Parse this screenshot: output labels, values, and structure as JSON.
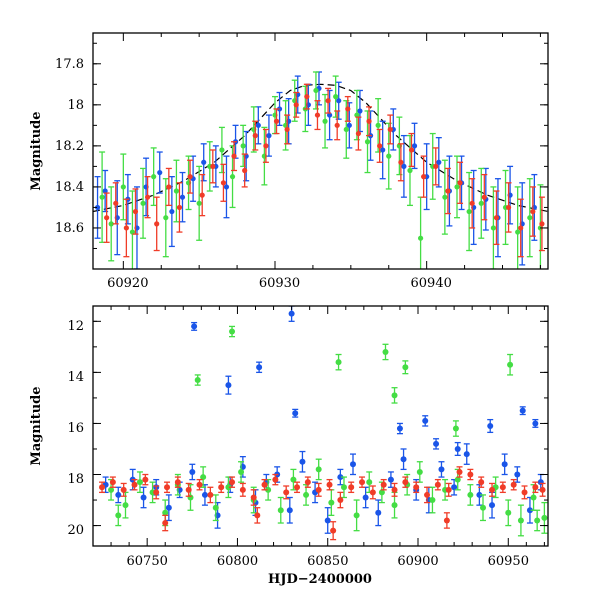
{
  "chart_data": [
    {
      "type": "scatter",
      "title": "",
      "xlabel": "",
      "ylabel": "Magnitude",
      "xlim": [
        60918,
        60948
      ],
      "ylim": [
        18.8,
        17.65
      ],
      "y_inverted": true,
      "xticks": [
        60920,
        60930,
        60940
      ],
      "xtick_labels": [
        "60920",
        "60930",
        "60940"
      ],
      "yticks": [
        17.8,
        18.0,
        18.2,
        18.4,
        18.6
      ],
      "ytick_labels": [
        "17.8",
        "18",
        "18.2",
        "18.4",
        "18.6"
      ],
      "colors": {
        "blue": "#1a55e8",
        "green": "#44dd44",
        "red": "#f03c28",
        "fit": "#000000"
      },
      "series": [
        {
          "name": "blue",
          "x": [
            60918.3,
            60918.8,
            60919.6,
            60920.3,
            60920.9,
            60921.5,
            60922.4,
            60923.2,
            60923.9,
            60924.6,
            60925.3,
            60926.1,
            60926.8,
            60927.4,
            60928.1,
            60928.9,
            60929.6,
            60930.3,
            60930.9,
            60931.5,
            60932.2,
            60932.9,
            60933.6,
            60934.2,
            60934.9,
            60935.6,
            60936.3,
            60937.1,
            60937.8,
            60938.5,
            60939.2,
            60940.0,
            60940.8,
            60941.5,
            60942.3,
            60943.1,
            60943.9,
            60944.7,
            60945.5,
            60946.3,
            60947.1
          ],
          "y": [
            18.5,
            18.42,
            18.55,
            18.46,
            18.6,
            18.4,
            18.33,
            18.52,
            18.45,
            18.36,
            18.28,
            18.3,
            18.4,
            18.18,
            18.25,
            18.1,
            18.15,
            18.02,
            18.08,
            17.95,
            18.0,
            17.92,
            18.05,
            17.98,
            18.1,
            18.03,
            18.15,
            18.22,
            18.12,
            18.3,
            18.2,
            18.35,
            18.28,
            18.42,
            18.38,
            18.5,
            18.46,
            18.55,
            18.44,
            18.58,
            18.5
          ],
          "err": [
            0.15,
            0.1,
            0.18,
            0.12,
            0.2,
            0.14,
            0.1,
            0.17,
            0.12,
            0.11,
            0.09,
            0.1,
            0.15,
            0.08,
            0.12,
            0.09,
            0.1,
            0.08,
            0.11,
            0.09,
            0.1,
            0.08,
            0.12,
            0.09,
            0.11,
            0.1,
            0.12,
            0.14,
            0.1,
            0.15,
            0.11,
            0.16,
            0.12,
            0.17,
            0.13,
            0.18,
            0.15,
            0.19,
            0.14,
            0.2,
            0.16
          ]
        },
        {
          "name": "green",
          "x": [
            60918.6,
            60919.2,
            60920.0,
            60920.6,
            60921.3,
            60922.0,
            60922.8,
            60923.5,
            60924.3,
            60925.0,
            60925.7,
            60926.5,
            60927.2,
            60927.9,
            60928.6,
            60929.3,
            60930.0,
            60930.7,
            60931.3,
            60932.0,
            60932.7,
            60933.3,
            60934.0,
            60934.7,
            60935.4,
            60936.1,
            60936.8,
            60937.5,
            60938.2,
            60938.9,
            60939.6,
            60940.4,
            60941.2,
            60942.0,
            60942.8,
            60943.6,
            60944.4,
            60945.2,
            60946.0,
            60946.8,
            60947.5
          ],
          "y": [
            18.45,
            18.58,
            18.4,
            18.62,
            18.48,
            18.35,
            18.55,
            18.42,
            18.38,
            18.48,
            18.3,
            18.22,
            18.35,
            18.2,
            18.12,
            18.25,
            18.05,
            18.1,
            17.98,
            18.02,
            17.93,
            18.08,
            17.96,
            18.12,
            18.05,
            18.18,
            18.1,
            18.25,
            18.2,
            18.32,
            18.65,
            18.3,
            18.45,
            18.4,
            18.52,
            18.48,
            18.6,
            18.5,
            18.62,
            18.55,
            18.6
          ],
          "err": [
            0.22,
            0.18,
            0.16,
            0.2,
            0.17,
            0.14,
            0.19,
            0.15,
            0.13,
            0.18,
            0.12,
            0.11,
            0.15,
            0.1,
            0.11,
            0.14,
            0.09,
            0.12,
            0.1,
            0.11,
            0.09,
            0.13,
            0.1,
            0.14,
            0.12,
            0.15,
            0.13,
            0.16,
            0.14,
            0.17,
            0.2,
            0.16,
            0.18,
            0.15,
            0.19,
            0.17,
            0.2,
            0.18,
            0.22,
            0.19,
            0.21
          ]
        },
        {
          "name": "red",
          "x": [
            60918.9,
            60919.5,
            60920.2,
            60920.8,
            60921.6,
            60922.2,
            60923.0,
            60923.7,
            60924.4,
            60925.2,
            60925.9,
            60926.6,
            60927.3,
            60928.0,
            60928.7,
            60929.4,
            60930.1,
            60930.8,
            60931.4,
            60932.1,
            60932.8,
            60933.5,
            60934.1,
            60934.8,
            60935.5,
            60936.2,
            60936.9,
            60937.6,
            60938.3,
            60939.0,
            60939.8,
            60940.6,
            60941.4,
            60942.2,
            60943.0,
            60943.8,
            60944.6,
            60945.4,
            60946.2,
            60947.0,
            60947.6
          ],
          "y": [
            18.55,
            18.48,
            18.6,
            18.52,
            18.45,
            18.58,
            18.4,
            18.5,
            18.35,
            18.44,
            18.3,
            18.38,
            18.25,
            18.32,
            18.15,
            18.2,
            18.08,
            18.12,
            18.0,
            17.96,
            18.05,
            17.98,
            18.1,
            18.02,
            18.14,
            18.08,
            18.2,
            18.12,
            18.28,
            18.22,
            18.35,
            18.3,
            18.42,
            18.38,
            18.48,
            18.45,
            18.55,
            18.5,
            18.6,
            18.52,
            18.58
          ],
          "err": [
            0.12,
            0.1,
            0.14,
            0.11,
            0.1,
            0.13,
            0.09,
            0.12,
            0.08,
            0.1,
            0.08,
            0.09,
            0.07,
            0.08,
            0.07,
            0.08,
            0.06,
            0.07,
            0.06,
            0.06,
            0.07,
            0.06,
            0.07,
            0.06,
            0.08,
            0.07,
            0.08,
            0.07,
            0.09,
            0.08,
            0.1,
            0.09,
            0.11,
            0.1,
            0.12,
            0.11,
            0.13,
            0.12,
            0.14,
            0.12,
            0.13
          ]
        },
        {
          "name": "fit",
          "type": "line",
          "dashed": true,
          "x": [
            60918,
            60920,
            60922,
            60924,
            60926,
            60928,
            60929,
            60930,
            60931,
            60932,
            60933,
            60934,
            60935,
            60936,
            60937,
            60938,
            60940,
            60942,
            60944,
            60946,
            60948
          ],
          "y": [
            18.52,
            18.49,
            18.44,
            18.37,
            18.28,
            18.15,
            18.07,
            17.99,
            17.93,
            17.905,
            17.9,
            17.905,
            17.93,
            17.99,
            18.07,
            18.15,
            18.28,
            18.37,
            18.44,
            18.49,
            18.52
          ]
        }
      ]
    },
    {
      "type": "scatter",
      "title": "",
      "xlabel": "HJD−2400000",
      "ylabel": "Magnitude",
      "xlim": [
        60720,
        60972
      ],
      "ylim": [
        20.8,
        11.4
      ],
      "y_inverted": true,
      "xticks": [
        60750,
        60800,
        60850,
        60900,
        60950
      ],
      "xtick_labels": [
        "60750",
        "60800",
        "60850",
        "60900",
        "60950"
      ],
      "yticks": [
        12,
        14,
        16,
        18,
        20
      ],
      "ytick_labels": [
        "12",
        "14",
        "16",
        "18",
        "20"
      ],
      "colors": {
        "blue": "#1a55e8",
        "green": "#44dd44",
        "red": "#f03c28"
      },
      "series": [
        {
          "name": "blue",
          "x": [
            60727,
            60734,
            60742,
            60748,
            60755,
            60762,
            60768,
            60775,
            60782,
            60789,
            60796,
            60803,
            60810,
            60816,
            60822,
            60829,
            60836,
            60843,
            60850,
            60857,
            60864,
            60871,
            60878,
            60885,
            60892,
            60899,
            60906,
            60913,
            60920,
            60927,
            60934,
            60941,
            60948,
            60955,
            60962,
            60968,
            60776,
            60795,
            60812,
            60830,
            60832,
            60904,
            60940,
            60958,
            60965,
            60910,
            60922,
            60890
          ],
          "y": [
            18.4,
            18.8,
            18.2,
            18.9,
            18.5,
            19.3,
            18.6,
            17.9,
            18.8,
            19.6,
            18.4,
            17.7,
            19.1,
            18.3,
            18.0,
            19.4,
            17.5,
            18.7,
            19.8,
            18.1,
            17.6,
            18.9,
            19.5,
            18.2,
            17.4,
            18.6,
            19.0,
            17.8,
            18.5,
            17.2,
            18.8,
            19.2,
            17.6,
            18.0,
            19.4,
            18.3,
            12.2,
            14.5,
            13.8,
            11.7,
            15.6,
            15.9,
            16.1,
            15.5,
            16.0,
            16.8,
            17.0,
            16.2
          ],
          "err": [
            0.3,
            0.3,
            0.4,
            0.4,
            0.3,
            0.5,
            0.3,
            0.3,
            0.4,
            0.5,
            0.3,
            0.4,
            0.5,
            0.3,
            0.3,
            0.5,
            0.4,
            0.4,
            0.5,
            0.3,
            0.4,
            0.4,
            0.5,
            0.3,
            0.4,
            0.4,
            0.5,
            0.3,
            0.3,
            0.4,
            0.4,
            0.5,
            0.4,
            0.3,
            0.5,
            0.3,
            0.15,
            0.35,
            0.2,
            0.3,
            0.15,
            0.2,
            0.25,
            0.15,
            0.15,
            0.2,
            0.25,
            0.2
          ]
        },
        {
          "name": "green",
          "x": [
            60730,
            60738,
            60746,
            60753,
            60760,
            60767,
            60774,
            60781,
            60788,
            60795,
            60802,
            60809,
            60817,
            60824,
            60831,
            60838,
            60845,
            60852,
            60859,
            60866,
            60873,
            60880,
            60887,
            60894,
            60901,
            60908,
            60915,
            60922,
            60929,
            60936,
            60943,
            60950,
            60957,
            60964,
            60970,
            60778,
            60797,
            60856,
            60882,
            60887,
            60893,
            60921,
            60951,
            60734,
            60966
          ],
          "y": [
            18.6,
            19.2,
            18.3,
            18.7,
            19.5,
            18.4,
            18.9,
            18.1,
            19.3,
            18.5,
            17.9,
            19.0,
            18.6,
            19.4,
            18.2,
            18.8,
            17.8,
            19.1,
            18.5,
            19.6,
            18.3,
            18.7,
            19.2,
            18.4,
            17.9,
            19.0,
            18.6,
            18.2,
            18.8,
            19.3,
            18.5,
            19.5,
            19.8,
            18.9,
            19.7,
            14.3,
            12.4,
            13.6,
            13.2,
            14.9,
            13.8,
            16.2,
            13.7,
            19.6,
            19.8
          ],
          "err": [
            0.4,
            0.5,
            0.4,
            0.4,
            0.5,
            0.4,
            0.5,
            0.4,
            0.5,
            0.4,
            0.4,
            0.5,
            0.4,
            0.5,
            0.4,
            0.4,
            0.4,
            0.5,
            0.4,
            0.6,
            0.4,
            0.4,
            0.5,
            0.4,
            0.4,
            0.5,
            0.4,
            0.4,
            0.4,
            0.5,
            0.4,
            0.5,
            0.6,
            0.5,
            0.6,
            0.2,
            0.2,
            0.3,
            0.3,
            0.3,
            0.25,
            0.3,
            0.4,
            0.4,
            0.4
          ]
        },
        {
          "name": "red",
          "x": [
            60725,
            60731,
            60737,
            60743,
            60749,
            60755,
            60761,
            60767,
            60773,
            60779,
            60785,
            60791,
            60797,
            60803,
            60809,
            60815,
            60821,
            60827,
            60833,
            60839,
            60845,
            60851,
            60857,
            60863,
            60869,
            60875,
            60881,
            60887,
            60893,
            60899,
            60905,
            60911,
            60917,
            60923,
            60929,
            60935,
            60941,
            60947,
            60953,
            60959,
            60965,
            60969,
            60760,
            60811,
            60853,
            60916
          ],
          "y": [
            18.5,
            18.3,
            18.6,
            18.4,
            18.2,
            18.7,
            18.5,
            18.3,
            18.6,
            18.4,
            18.8,
            18.5,
            18.3,
            18.6,
            18.9,
            18.4,
            18.2,
            18.7,
            18.5,
            18.3,
            18.6,
            18.4,
            19.0,
            18.5,
            18.3,
            18.7,
            18.4,
            18.6,
            18.3,
            18.5,
            18.8,
            18.4,
            18.6,
            17.9,
            18.0,
            18.3,
            18.6,
            18.5,
            18.4,
            18.7,
            18.5,
            18.6,
            19.9,
            19.6,
            20.2,
            19.8
          ],
          "err": [
            0.2,
            0.2,
            0.25,
            0.2,
            0.2,
            0.25,
            0.2,
            0.2,
            0.25,
            0.2,
            0.3,
            0.2,
            0.2,
            0.25,
            0.3,
            0.2,
            0.2,
            0.25,
            0.2,
            0.2,
            0.25,
            0.2,
            0.3,
            0.2,
            0.2,
            0.25,
            0.2,
            0.25,
            0.2,
            0.2,
            0.3,
            0.2,
            0.25,
            0.2,
            0.2,
            0.2,
            0.25,
            0.2,
            0.2,
            0.25,
            0.2,
            0.25,
            0.3,
            0.3,
            0.35,
            0.3
          ]
        }
      ]
    }
  ]
}
